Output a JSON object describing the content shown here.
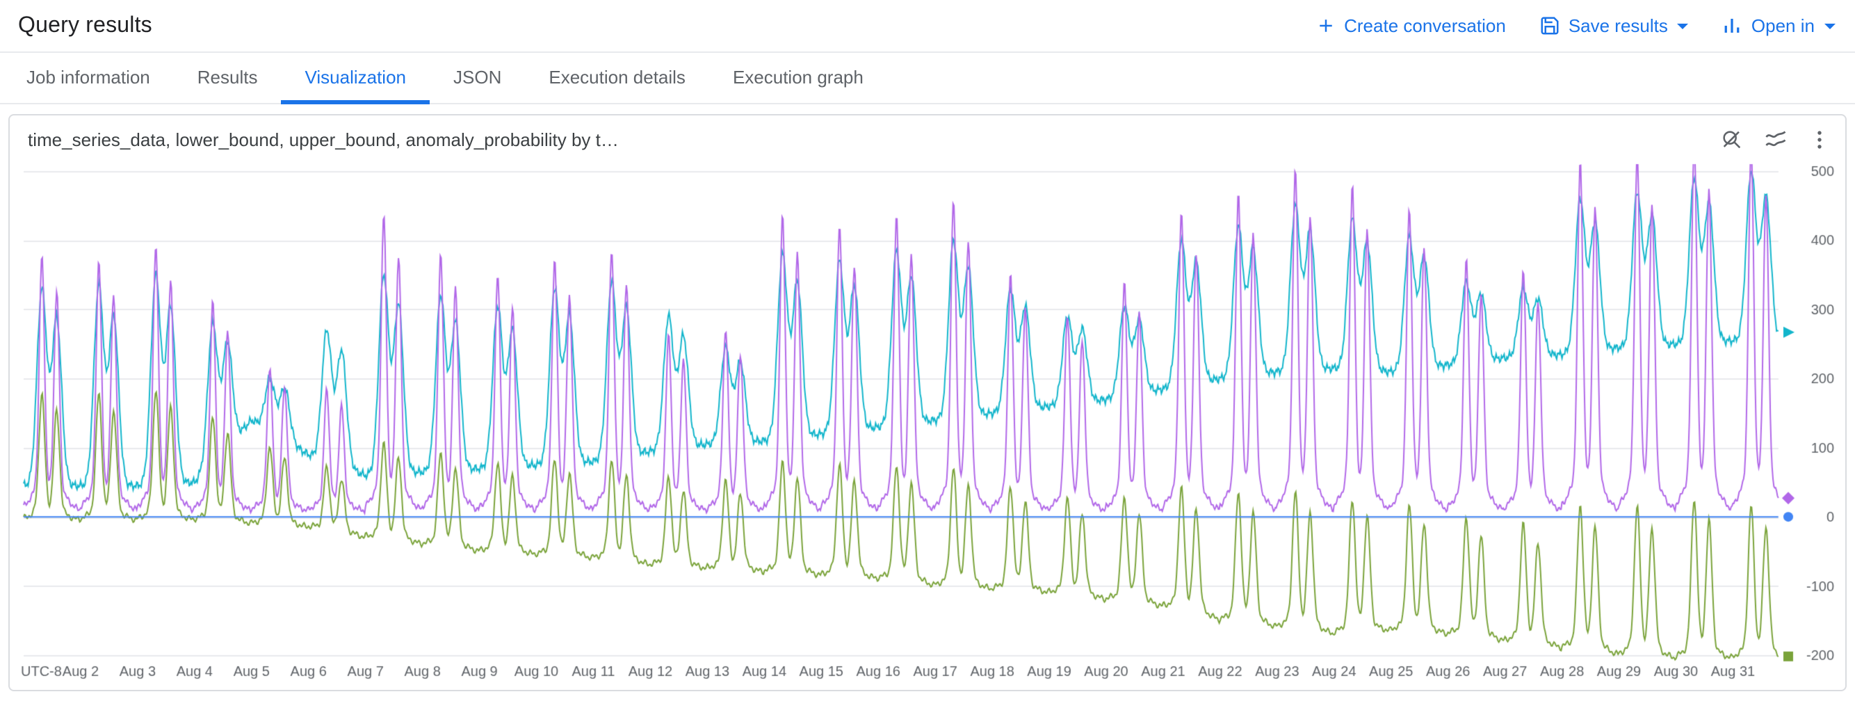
{
  "colors": {
    "accent": "#1a73e8",
    "text": "#202124",
    "muted": "#5f6368",
    "grid": "#e8eaed"
  },
  "header": {
    "title": "Query results",
    "actions": [
      {
        "label": "Create conversation",
        "icon": "plus-icon",
        "has_menu": false
      },
      {
        "label": "Save results",
        "icon": "save-icon",
        "has_menu": true
      },
      {
        "label": "Open in",
        "icon": "bar-chart-icon",
        "has_menu": true
      }
    ]
  },
  "tabs": [
    {
      "label": "Job information",
      "active": false
    },
    {
      "label": "Results",
      "active": false
    },
    {
      "label": "Visualization",
      "active": true
    },
    {
      "label": "JSON",
      "active": false
    },
    {
      "label": "Execution details",
      "active": false
    },
    {
      "label": "Execution graph",
      "active": false
    }
  ],
  "chart_toolbar": {
    "icons": [
      "zoom-off",
      "chart-type",
      "more-vert"
    ]
  },
  "chart_data": {
    "type": "line",
    "title": "time_series_data, lower_bound, upper_bound, anomaly_probability by t…",
    "grid": "horizontal",
    "legend": "none",
    "samples_per_day": 64,
    "y_axis": {
      "min": -200,
      "max": 500,
      "ticks": [
        500,
        400,
        300,
        200,
        100,
        0,
        -100,
        -200
      ]
    },
    "x_axis": {
      "corner_label": "UTC-8",
      "days_total": 30.8,
      "tick_labels": [
        "Aug 2",
        "Aug 3",
        "Aug 4",
        "Aug 5",
        "Aug 6",
        "Aug 7",
        "Aug 8",
        "Aug 9",
        "Aug 10",
        "Aug 11",
        "Aug 12",
        "Aug 13",
        "Aug 14",
        "Aug 15",
        "Aug 16",
        "Aug 17",
        "Aug 18",
        "Aug 19",
        "Aug 20",
        "Aug 21",
        "Aug 22",
        "Aug 23",
        "Aug 24",
        "Aug 25",
        "Aug 26",
        "Aug 27",
        "Aug 28",
        "Aug 29",
        "Aug 30",
        "Aug 31"
      ]
    },
    "series": [
      {
        "name": "time_series_data",
        "color": "#b167e8",
        "marker": "diamond",
        "pattern": "daily-peaks",
        "base": 8,
        "day_peak": [
          335,
          330,
          350,
          275,
          190,
          160,
          390,
          340,
          310,
          330,
          345,
          230,
          240,
          390,
          375,
          390,
          410,
          310,
          260,
          300,
          395,
          420,
          450,
          430,
          400,
          330,
          320,
          460,
          470,
          490,
          480
        ]
      },
      {
        "name": "upper_bound",
        "color": "#12b5cb",
        "marker": "triangle",
        "pattern": "daily-envelope",
        "day_peak": [
          330,
          335,
          350,
          280,
          200,
          270,
          350,
          320,
          305,
          330,
          340,
          290,
          245,
          380,
          370,
          385,
          400,
          330,
          290,
          305,
          400,
          420,
          450,
          430,
          405,
          340,
          330,
          460,
          470,
          490,
          500
        ],
        "day_min": [
          45,
          45,
          45,
          50,
          140,
          90,
          60,
          65,
          70,
          75,
          80,
          95,
          105,
          110,
          120,
          130,
          140,
          150,
          160,
          170,
          185,
          200,
          210,
          215,
          210,
          220,
          230,
          235,
          245,
          250,
          255
        ]
      },
      {
        "name": "lower_bound",
        "color": "#7aa33a",
        "marker": "square",
        "pattern": "daily-peaks-offset",
        "day_amp": [
          170,
          170,
          175,
          140,
          105,
          85,
          130,
          125,
          120,
          130,
          135,
          120,
          120,
          150,
          150,
          155,
          160,
          140,
          130,
          140,
          165,
          175,
          185,
          180,
          170,
          160,
          160,
          195,
          200,
          215,
          205
        ],
        "day_base": [
          -5,
          -5,
          -5,
          -5,
          -10,
          -15,
          -30,
          -40,
          -50,
          -55,
          -60,
          -70,
          -75,
          -80,
          -85,
          -90,
          -100,
          -105,
          -110,
          -120,
          -130,
          -150,
          -160,
          -170,
          -165,
          -170,
          -180,
          -190,
          -200,
          -205,
          -205
        ]
      },
      {
        "name": "anomaly_probability",
        "color": "#4285f4",
        "marker": "circle",
        "pattern": "constant",
        "value": 0
      }
    ]
  }
}
